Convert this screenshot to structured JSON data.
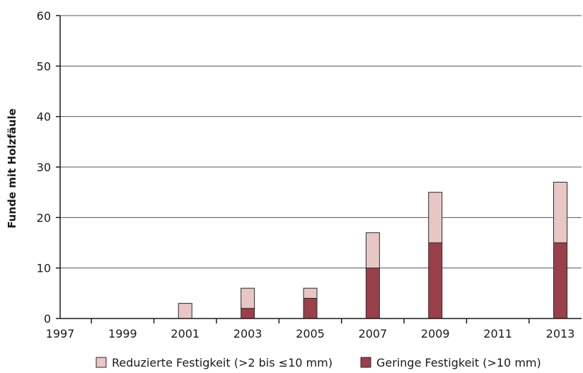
{
  "chart_data": {
    "type": "bar",
    "stacked": true,
    "x": [
      1997,
      1999,
      2001,
      2003,
      2005,
      2007,
      2009,
      2011,
      2013
    ],
    "ylabel": "Funde mit Holzfäule",
    "ylim": [
      0,
      60
    ],
    "y_ticks": [
      0,
      10,
      20,
      30,
      40,
      50,
      60
    ],
    "x_ticks": [
      "1997",
      "1999",
      "2001",
      "2003",
      "2005",
      "2007",
      "2009",
      "2011",
      "2013"
    ],
    "grid": true,
    "legend_position": "bottom",
    "series": [
      {
        "name": "Geringe Festigkeit (>10 mm)",
        "color": "#9b3f4a",
        "values": [
          0,
          0,
          0,
          2,
          4,
          10,
          15,
          0,
          15
        ]
      },
      {
        "name": "Reduzierte Festigkeit (>2 bis ≤10 mm)",
        "color": "#e8c6c6",
        "values": [
          0,
          0,
          3,
          4,
          2,
          7,
          10,
          0,
          12
        ]
      }
    ],
    "legend_order": [
      1,
      0
    ]
  }
}
